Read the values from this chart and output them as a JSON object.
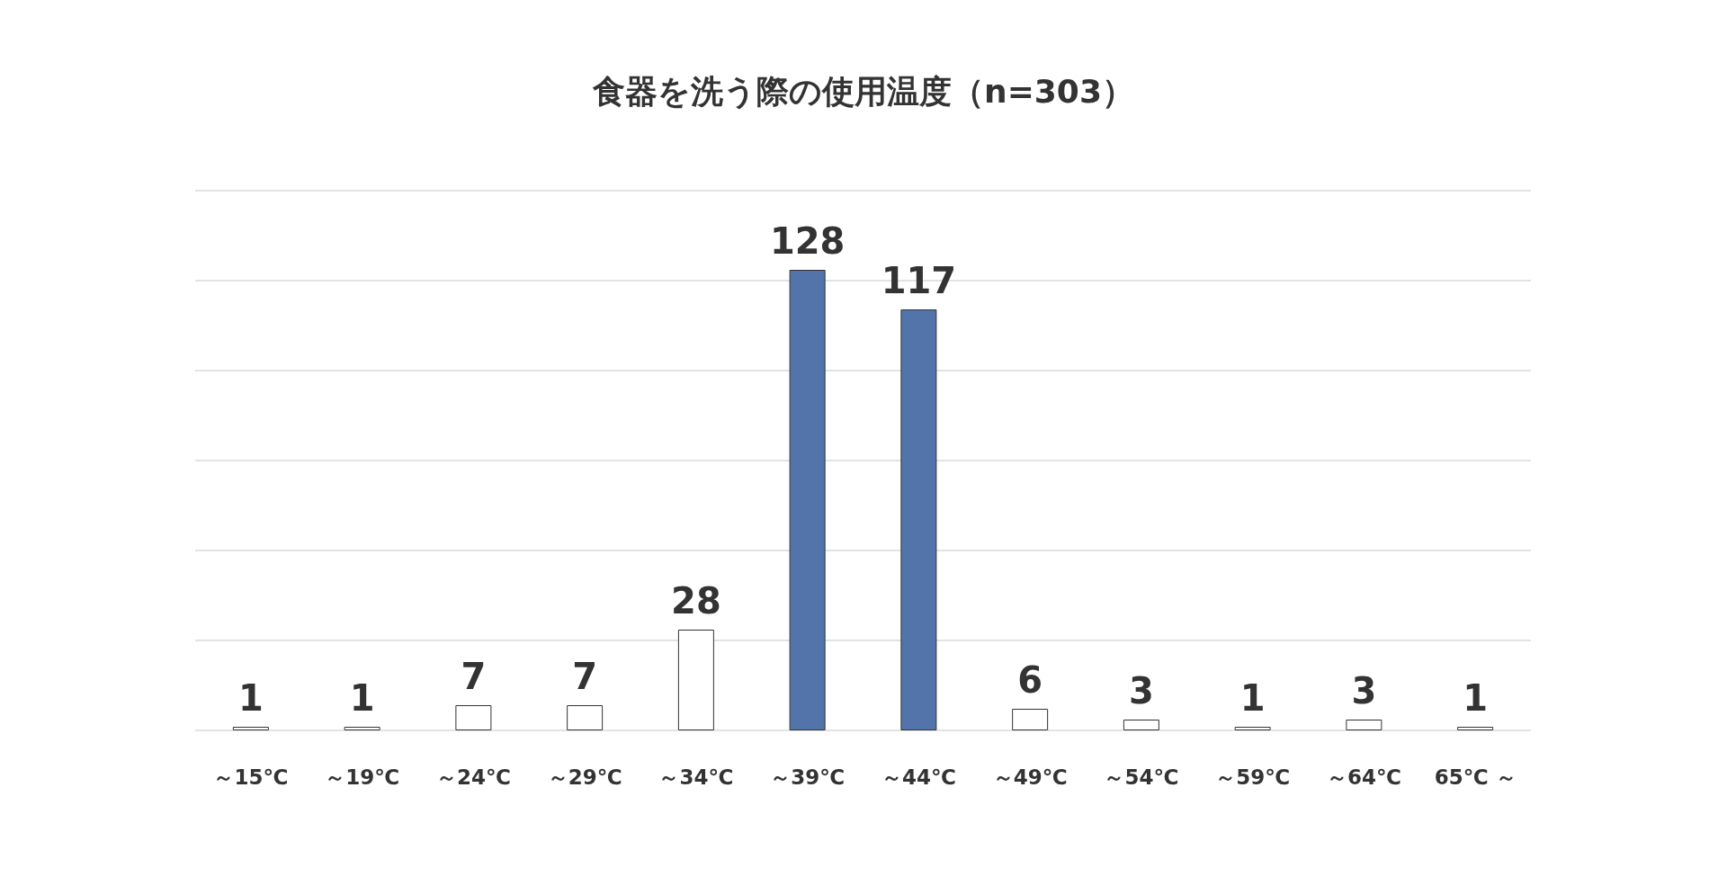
{
  "chart_data": {
    "type": "bar",
    "title": "食器を洗う際の使用温度（n=303）",
    "categories": [
      "～15℃",
      "～19℃",
      "～24℃",
      "～29℃",
      "～34℃",
      "～39℃",
      "～44℃",
      "～49℃",
      "～54℃",
      "～59℃",
      "～64℃",
      "65℃ ～"
    ],
    "values": [
      1,
      1,
      7,
      7,
      28,
      128,
      117,
      6,
      3,
      1,
      3,
      1
    ],
    "colors": [
      "#ffffff",
      "#ffffff",
      "#ffffff",
      "#ffffff",
      "#ffffff",
      "#5274aa",
      "#5274aa",
      "#ffffff",
      "#ffffff",
      "#ffffff",
      "#ffffff",
      "#ffffff"
    ],
    "ylim": [
      0,
      150
    ],
    "yticks": [
      0,
      25,
      50,
      75,
      100,
      125,
      150
    ],
    "grid": "y",
    "tick_labels": "x",
    "data_labels": true
  }
}
